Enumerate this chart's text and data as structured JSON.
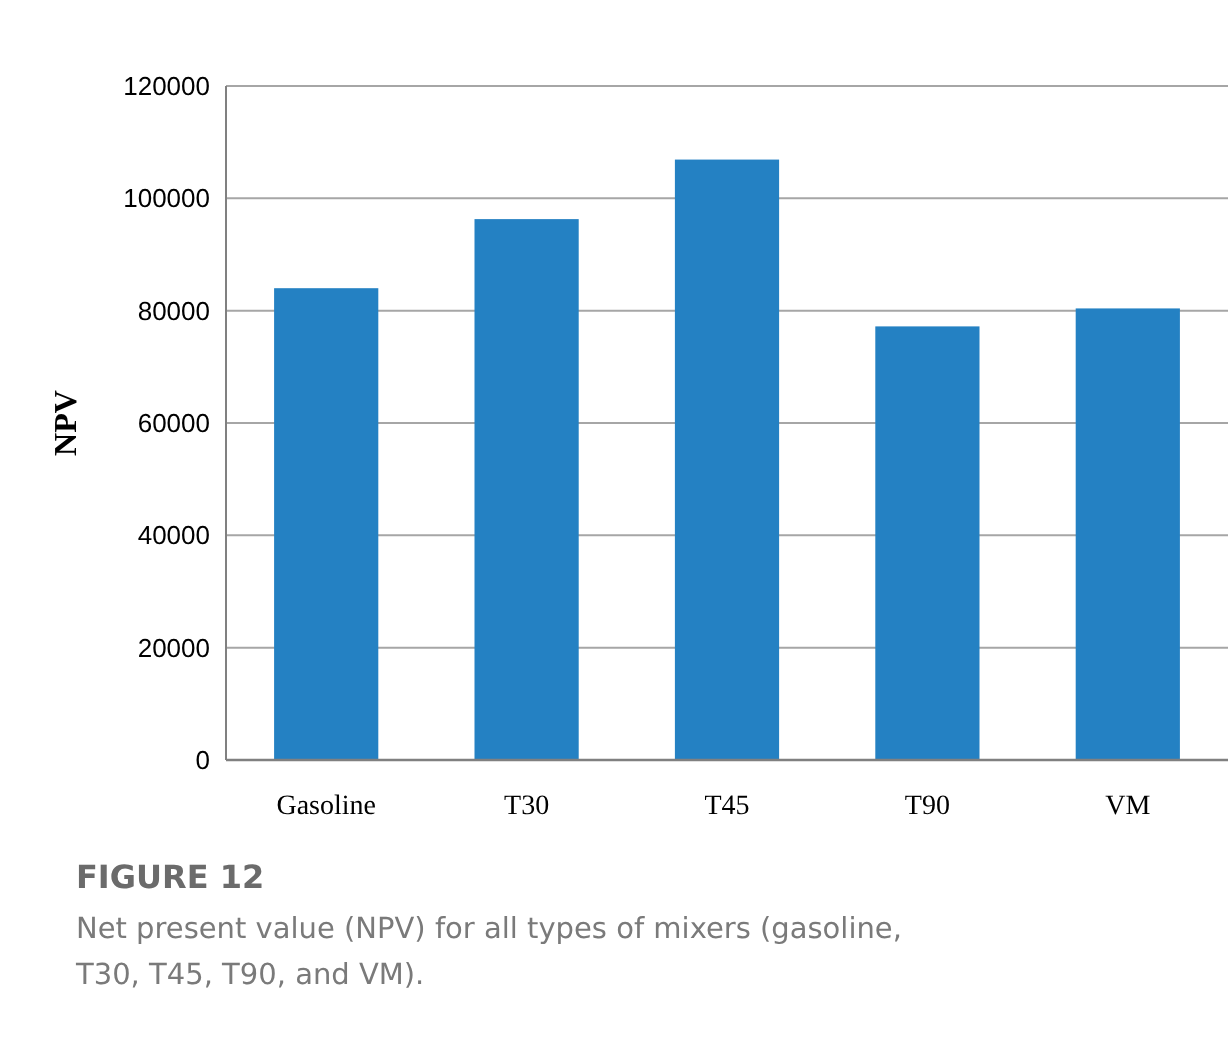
{
  "chart_data": {
    "type": "bar",
    "title": "FIGURE 12",
    "annotations": [
      "Net present value (NPV) for all types of mixers (gasoline, T30, T45, T90, and VM)."
    ],
    "ylabel": "NPV",
    "categories": [
      "Gasoline",
      "T30",
      "T45",
      "T90",
      "VM"
    ],
    "values": [
      84000,
      96300,
      106900,
      77200,
      80400
    ],
    "color": "#2481c3",
    "ylim": [
      0,
      120000
    ],
    "yticks": [
      0,
      20000,
      40000,
      60000,
      80000,
      100000,
      120000
    ],
    "grid": "y"
  }
}
